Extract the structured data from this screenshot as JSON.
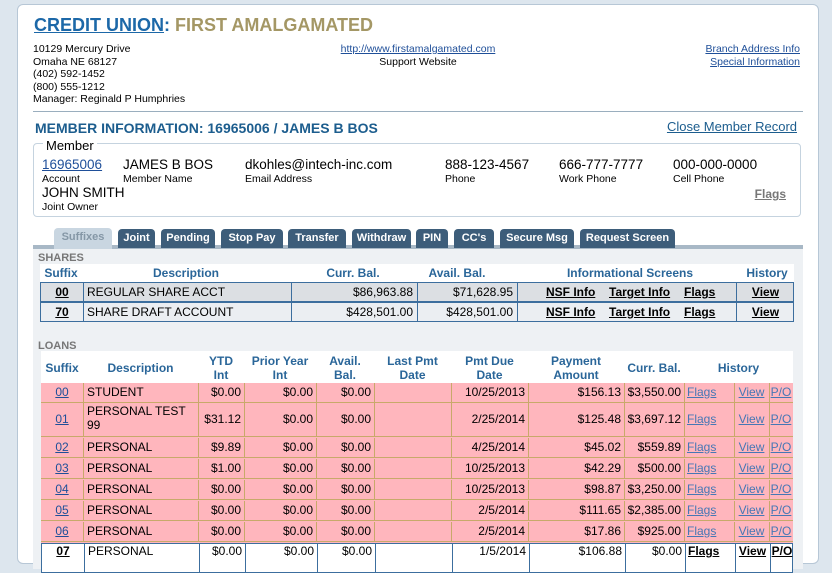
{
  "header": {
    "title_cu": "CREDIT UNION",
    "title_colon": ":",
    "title_name": "FIRST AMALGAMATED",
    "address": [
      "10129 Mercury Drive",
      "Omaha NE 68127",
      "(402) 592-1452",
      "(800) 555-1212",
      "Manager: Reginald P Humphries"
    ],
    "website_url": "http://www.firstamalgamated.com",
    "website_label": "Support Website",
    "links": [
      "Branch Address Info",
      "Special Information"
    ]
  },
  "member_info": {
    "title": "MEMBER INFORMATION: 16965006 / JAMES B BOS",
    "close_link": "Close Member Record",
    "legend": "Member",
    "account": "16965006",
    "account_label": "Account",
    "member_name": "JAMES B BOS",
    "member_name_label": "Member Name",
    "email": "dkohles@intech-inc.com",
    "email_label": "Email Address",
    "phone": "888-123-4567",
    "phone_label": "Phone",
    "work_phone": "666-777-7777",
    "work_phone_label": "Work Phone",
    "cell_phone": "000-000-0000",
    "cell_phone_label": "Cell Phone",
    "joint_owner": "JOHN SMITH",
    "joint_owner_label": "Joint Owner",
    "flags": "Flags"
  },
  "tabs": [
    "Suffixes",
    "Joint",
    "Pending",
    "Stop Pay",
    "Transfer",
    "Withdraw",
    "PIN",
    "CC's",
    "Secure Msg",
    "Request Screen"
  ],
  "active_tab": "Suffixes",
  "shares": {
    "section": "SHARES",
    "headers": [
      "Suffix",
      "Description",
      "Curr. Bal.",
      "Avail. Bal.",
      "Informational Screens",
      "History"
    ],
    "rows": [
      {
        "suffix": "00",
        "description": "REGULAR SHARE ACCT",
        "curr": "$86,963.88",
        "avail": "$71,628.95",
        "nsf": "NSF Info",
        "target": "Target Info",
        "flags": "Flags",
        "view": "View"
      },
      {
        "suffix": "70",
        "description": "SHARE DRAFT ACCOUNT",
        "curr": "$428,501.00",
        "avail": "$428,501.00",
        "nsf": "NSF Info",
        "target": "Target Info",
        "flags": "Flags",
        "view": "View"
      }
    ]
  },
  "loans": {
    "section": "LOANS",
    "headers": {
      "suffix": "Suffix",
      "description": "Description",
      "ytd1": "YTD",
      "ytd2": "Int",
      "pyi1": "Prior Year",
      "pyi2": "Int",
      "avail1": "Avail.",
      "avail2": "Bal.",
      "lpd1": "Last Pmt",
      "lpd2": "Date",
      "pdd1": "Pmt Due",
      "pdd2": "Date",
      "pay1": "Payment",
      "pay2": "Amount",
      "curr": "Curr. Bal.",
      "history": "History"
    },
    "rows": [
      {
        "suffix": "00",
        "description": "STUDENT",
        "ytd": "$0.00",
        "pyi": "$0.00",
        "avail": "$0.00",
        "last": "",
        "due": "10/25/2013",
        "payment": "$156.13",
        "curr": "$3,550.00",
        "flags": "Flags",
        "view": "View",
        "po": "P/O"
      },
      {
        "suffix": "01",
        "description": "PERSONAL TEST 99",
        "ytd": "$31.12",
        "pyi": "$0.00",
        "avail": "$0.00",
        "last": "",
        "due": "2/25/2014",
        "payment": "$125.48",
        "curr": "$3,697.12",
        "flags": "Flags",
        "view": "View",
        "po": "P/O"
      },
      {
        "suffix": "02",
        "description": "PERSONAL",
        "ytd": "$9.89",
        "pyi": "$0.00",
        "avail": "$0.00",
        "last": "",
        "due": "4/25/2014",
        "payment": "$45.02",
        "curr": "$559.89",
        "flags": "Flags",
        "view": "View",
        "po": "P/O"
      },
      {
        "suffix": "03",
        "description": "PERSONAL",
        "ytd": "$1.00",
        "pyi": "$0.00",
        "avail": "$0.00",
        "last": "",
        "due": "10/25/2013",
        "payment": "$42.29",
        "curr": "$500.00",
        "flags": "Flags",
        "view": "View",
        "po": "P/O"
      },
      {
        "suffix": "04",
        "description": "PERSONAL",
        "ytd": "$0.00",
        "pyi": "$0.00",
        "avail": "$0.00",
        "last": "",
        "due": "10/25/2013",
        "payment": "$98.87",
        "curr": "$3,250.00",
        "flags": "Flags",
        "view": "View",
        "po": "P/O"
      },
      {
        "suffix": "05",
        "description": "PERSONAL",
        "ytd": "$0.00",
        "pyi": "$0.00",
        "avail": "$0.00",
        "last": "",
        "due": "2/5/2014",
        "payment": "$111.65",
        "curr": "$2,385.00",
        "flags": "Flags",
        "view": "View",
        "po": "P/O"
      },
      {
        "suffix": "06",
        "description": "PERSONAL",
        "ytd": "$0.00",
        "pyi": "$0.00",
        "avail": "$0.00",
        "last": "",
        "due": "2/5/2014",
        "payment": "$17.86",
        "curr": "$925.00",
        "flags": "Flags",
        "view": "View",
        "po": "P/O"
      },
      {
        "suffix": "07",
        "description": "PERSONAL",
        "ytd": "$0.00",
        "pyi": "$0.00",
        "avail": "$0.00",
        "last": "",
        "due": "1/5/2014",
        "payment": "$106.88",
        "curr": "$0.00",
        "flags": "Flags",
        "view": "View",
        "po": "P/O"
      }
    ]
  }
}
